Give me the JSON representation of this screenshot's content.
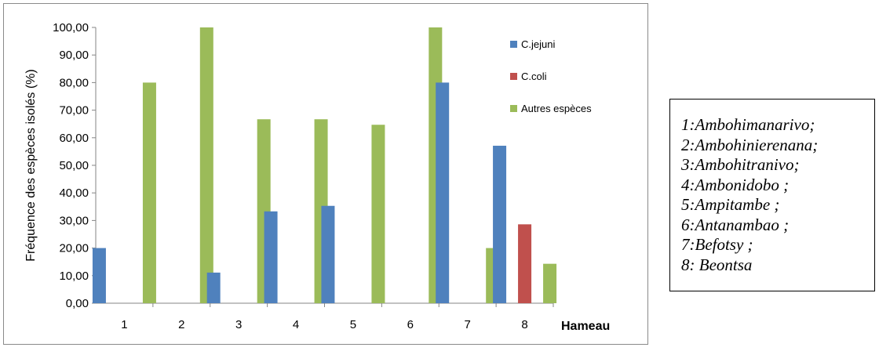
{
  "chart_data": {
    "type": "bar",
    "categories": [
      "1",
      "2",
      "3",
      "4",
      "5",
      "6",
      "7",
      "8"
    ],
    "series": [
      {
        "name": "C.jejuni",
        "color": "#4F81BD",
        "values": [
          20.0,
          0,
          11.1,
          33.3,
          35.3,
          0,
          80.0,
          57.1
        ]
      },
      {
        "name": "C.coli",
        "color": "#C0504D",
        "values": [
          0,
          0,
          0,
          0,
          0,
          0,
          0,
          28.6
        ]
      },
      {
        "name": "Autres espèces",
        "color": "#9BBB59",
        "values": [
          80.0,
          100.0,
          66.7,
          66.7,
          64.7,
          100.0,
          20.0,
          14.3
        ]
      }
    ],
    "title": "",
    "xlabel": "Hameau",
    "ylabel": "Fréquence des espèces isolés (%)",
    "ylim": [
      0,
      100
    ],
    "yticks": [
      "0,00",
      "10,00",
      "20,00",
      "30,00",
      "40,00",
      "50,00",
      "60,00",
      "70,00",
      "80,00",
      "90,00",
      "100,00"
    ],
    "grid": false,
    "legend_position": "top-right"
  },
  "hamlet_legend": [
    "1:Ambohimanarivo;",
    "2:Ambohinierenana;",
    "3:Ambohitranivo;",
    "4:Ambonidobo ;",
    "5:Ampitambe ;",
    "6:Antanambao ;",
    "7:Befotsy ;",
    "8: Beontsa"
  ]
}
